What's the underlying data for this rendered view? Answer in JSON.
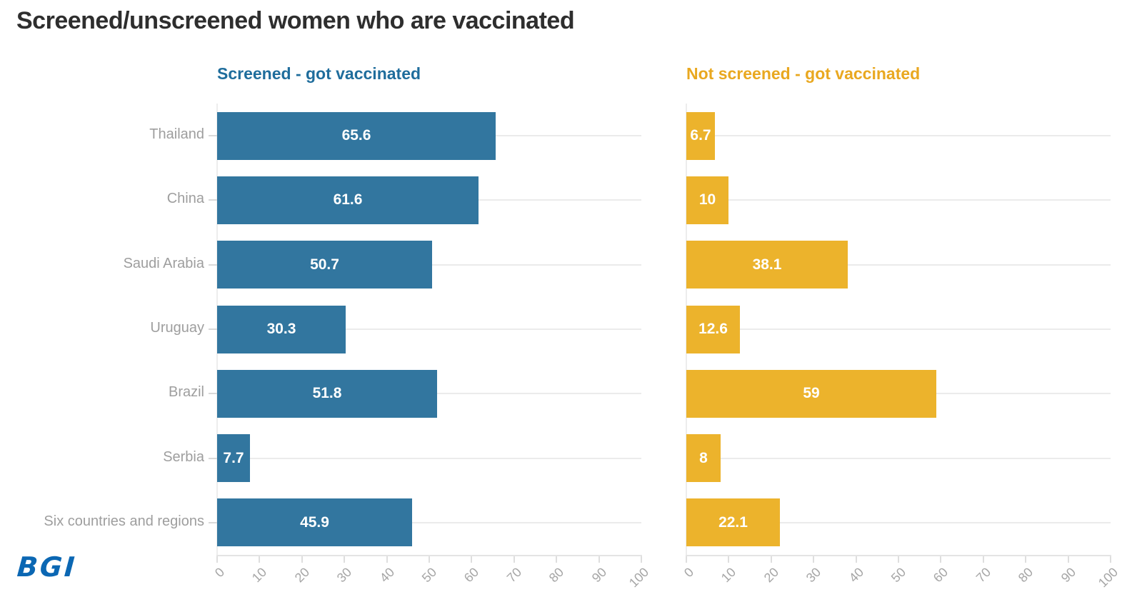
{
  "title": "Screened/unscreened women who are vaccinated",
  "logo_text": "BGI",
  "colors": {
    "screened_bar": "#32769F",
    "screened_title": "#1F6D9C",
    "not_screened_bar": "#ECB32C",
    "not_screened_title": "#E9A820",
    "logo_blue": "#0B67B3",
    "category_label_gray": "#9E9E9E",
    "axis_label_gray": "#A6A6A6",
    "title_dark": "#2E2E2E"
  },
  "chart_data": {
    "type": "bar",
    "orientation": "horizontal",
    "title": "Screened/unscreened women who are vaccinated",
    "categories": [
      "Thailand",
      "China",
      "Saudi Arabia",
      "Uruguay",
      "Brazil",
      "Serbia",
      "Six countries and regions"
    ],
    "series": [
      {
        "name": "Screened - got vaccinated",
        "color": "#32769F",
        "title_color": "#1F6D9C",
        "values": [
          65.6,
          61.6,
          50.7,
          30.3,
          51.8,
          7.7,
          45.9
        ]
      },
      {
        "name": "Not screened - got vaccinated",
        "color": "#ECB32C",
        "title_color": "#E9A820",
        "values": [
          6.7,
          10,
          38.1,
          12.6,
          59,
          8,
          22.1
        ]
      }
    ],
    "x_ticks": [
      0,
      10,
      20,
      30,
      40,
      50,
      60,
      70,
      80,
      90,
      100
    ],
    "xlim": [
      0,
      100
    ],
    "grid": "horizontal gridline per category row, light gray, behind bars",
    "legend_position": "panel titles above each chart",
    "value_labels": "white bold, centered inside bars"
  }
}
